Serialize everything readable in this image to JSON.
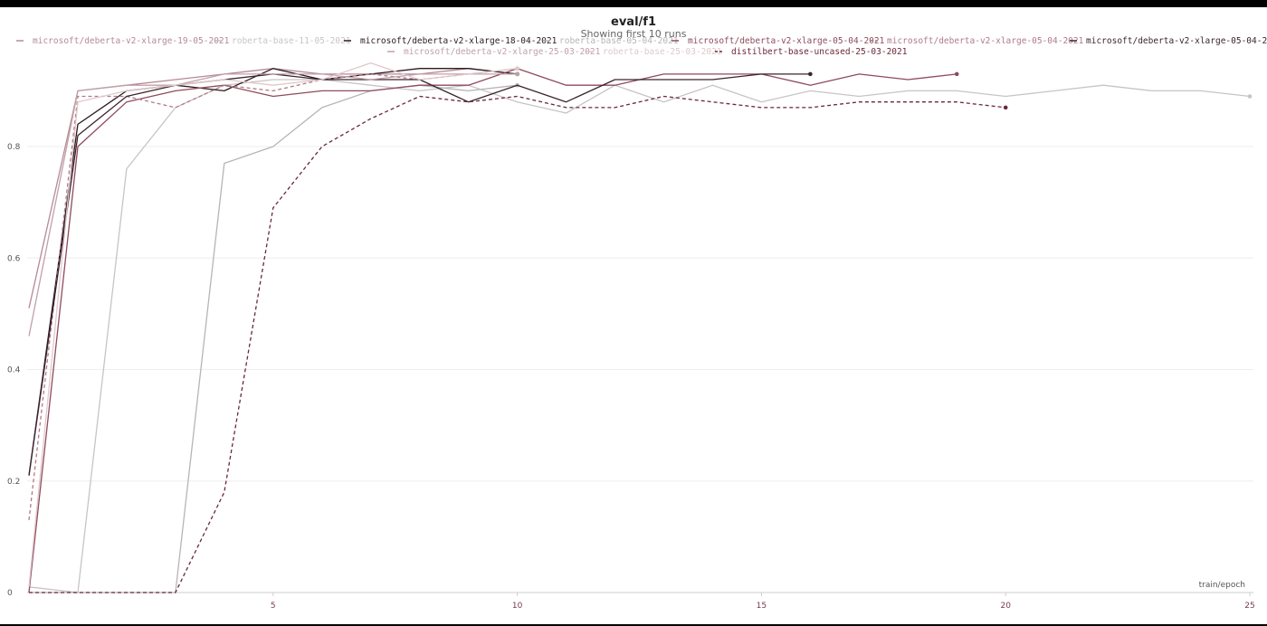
{
  "chart_data": {
    "type": "line",
    "title": "eval/f1",
    "subtitle": "Showing first 10 runs",
    "xlabel": "train/epoch",
    "ylabel": "",
    "xlim": [
      0,
      25
    ],
    "ylim": [
      0,
      0.95
    ],
    "x_ticks": [
      "5",
      "10",
      "15",
      "20",
      "25"
    ],
    "y_ticks": [
      "0",
      "0.2",
      "0.4",
      "0.6",
      "0.8"
    ],
    "grid": true,
    "legend_position": "top",
    "series": [
      {
        "name": "microsoft/deberta-v2-xlarge-19-05-2021",
        "color": "#b58a95",
        "dash": false,
        "x": [
          0,
          1,
          2,
          3,
          4,
          5,
          6,
          7,
          8,
          9,
          10
        ],
        "y": [
          0.51,
          0.9,
          0.91,
          0.92,
          0.93,
          0.94,
          0.93,
          0.93,
          0.93,
          0.94,
          0.93
        ]
      },
      {
        "name": "roberta-base-11-05-2021",
        "color": "#c8c4c4",
        "dash": false,
        "x": [
          0,
          1,
          2,
          3,
          4,
          5,
          6,
          7,
          8,
          9,
          10,
          11,
          12,
          13,
          14,
          15,
          16,
          17,
          18,
          19,
          20,
          21,
          22,
          23,
          24,
          25
        ],
        "y": [
          0.01,
          0.0,
          0.76,
          0.87,
          0.91,
          0.92,
          0.92,
          0.91,
          0.9,
          0.91,
          0.88,
          0.86,
          0.91,
          0.88,
          0.91,
          0.88,
          0.9,
          0.89,
          0.9,
          0.9,
          0.89,
          0.9,
          0.91,
          0.9,
          0.9,
          0.89
        ]
      },
      {
        "name": "microsoft/deberta-v2-xlarge-18-04-2021",
        "color": "#2a1a20",
        "dash": false,
        "x": [
          0,
          1,
          2,
          3,
          4,
          5,
          6,
          7,
          8,
          9,
          10
        ],
        "y": [
          0.21,
          0.84,
          0.9,
          0.91,
          0.9,
          0.94,
          0.92,
          0.93,
          0.94,
          0.94,
          0.93
        ]
      },
      {
        "name": "roberta-base-05-04-2021",
        "color": "#b8b4b4",
        "dash": false,
        "x": [
          0,
          1,
          2,
          3,
          4,
          5,
          6,
          7,
          8,
          9,
          10
        ],
        "y": [
          0.0,
          0.0,
          0.0,
          0.0,
          0.77,
          0.8,
          0.87,
          0.9,
          0.91,
          0.9,
          0.91
        ]
      },
      {
        "name": "microsoft/deberta-v2-xlarge-05-04-2021",
        "color": "#8f4a5c",
        "dash": false,
        "x": [
          0,
          1,
          2,
          3,
          4,
          5,
          6,
          7,
          8,
          9,
          10,
          11,
          12,
          13,
          14,
          15,
          16,
          17,
          18,
          19
        ],
        "y": [
          0.0,
          0.8,
          0.88,
          0.9,
          0.91,
          0.89,
          0.9,
          0.9,
          0.91,
          0.91,
          0.94,
          0.91,
          0.91,
          0.93,
          0.93,
          0.93,
          0.91,
          0.93,
          0.92,
          0.93
        ]
      },
      {
        "name": "microsoft/deberta-v2-xlarge-05-04-2021",
        "color": "#b07a88",
        "dash": true,
        "x": [
          0,
          1,
          2,
          3,
          4,
          5,
          6,
          7,
          8,
          9,
          10
        ],
        "y": [
          0.13,
          0.89,
          0.89,
          0.87,
          0.91,
          0.9,
          0.92,
          0.93,
          0.92,
          0.93,
          0.94
        ]
      },
      {
        "name": "microsoft/deberta-v2-xlarge-05-04-2021",
        "color": "#3a2430",
        "dash": false,
        "x": [
          0,
          1,
          2,
          3,
          4,
          5,
          6,
          7,
          8,
          9,
          10,
          11,
          12,
          13,
          14,
          15,
          16
        ],
        "y": [
          0.21,
          0.82,
          0.89,
          0.91,
          0.92,
          0.93,
          0.92,
          0.92,
          0.92,
          0.88,
          0.91,
          0.88,
          0.92,
          0.92,
          0.92,
          0.93,
          0.93
        ]
      },
      {
        "name": "microsoft/deberta-v2-xlarge-25-03-2021",
        "color": "#c0a0a8",
        "dash": false,
        "x": [
          0,
          1,
          2,
          3,
          4,
          5,
          6,
          7,
          8,
          9,
          10
        ],
        "y": [
          0.46,
          0.9,
          0.91,
          0.91,
          0.93,
          0.93,
          0.93,
          0.92,
          0.93,
          0.93,
          0.93
        ]
      },
      {
        "name": "roberta-base-25-03-2021",
        "color": "#e0c8cc",
        "dash": false,
        "x": [
          0,
          1,
          2,
          3,
          4,
          5,
          6,
          7,
          8,
          9,
          10
        ],
        "y": [
          0.01,
          0.88,
          0.9,
          0.91,
          0.92,
          0.91,
          0.92,
          0.95,
          0.92,
          0.93,
          0.94
        ]
      },
      {
        "name": "distilbert-base-uncased-25-03-2021",
        "color": "#6a2838",
        "dash": true,
        "x": [
          0,
          1,
          2,
          3,
          4,
          5,
          6,
          7,
          8,
          9,
          10,
          11,
          12,
          13,
          14,
          15,
          16,
          17,
          18,
          19,
          20
        ],
        "y": [
          0.0,
          0.0,
          0.0,
          0.0,
          0.18,
          0.69,
          0.8,
          0.85,
          0.89,
          0.88,
          0.89,
          0.87,
          0.87,
          0.89,
          0.88,
          0.87,
          0.87,
          0.88,
          0.88,
          0.88,
          0.87
        ]
      }
    ]
  }
}
